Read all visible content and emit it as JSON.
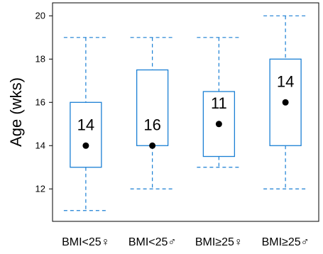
{
  "chart_data": {
    "type": "box",
    "title": "",
    "xlabel": "",
    "ylabel": "Age (wks)",
    "ylim": [
      10.5,
      20.6
    ],
    "yticks": [
      12,
      14,
      16,
      18,
      20
    ],
    "grid": false,
    "categories": [
      "BMI<25♀",
      "BMI<25♂",
      "BMI≥25♀",
      "BMI≥25♂"
    ],
    "boxes": [
      {
        "category": "BMI<25♀",
        "whisker_low": 11,
        "q1": 13,
        "median": 14,
        "q3": 16,
        "whisker_high": 19,
        "count_label": "14"
      },
      {
        "category": "BMI<25♂",
        "whisker_low": 12,
        "q1": 14,
        "median": 14,
        "q3": 17.5,
        "whisker_high": 19,
        "count_label": "16"
      },
      {
        "category": "BMI≥25♀",
        "whisker_low": 13,
        "q1": 13.5,
        "median": 15,
        "q3": 16.5,
        "whisker_high": 19,
        "count_label": "11"
      },
      {
        "category": "BMI≥25♂",
        "whisker_low": 12,
        "q1": 14,
        "median": 16,
        "q3": 18,
        "whisker_high": 20,
        "count_label": "14"
      }
    ],
    "colors": {
      "box": "#1a7fd4",
      "median_point": "#000000",
      "frame": "#000000"
    }
  }
}
